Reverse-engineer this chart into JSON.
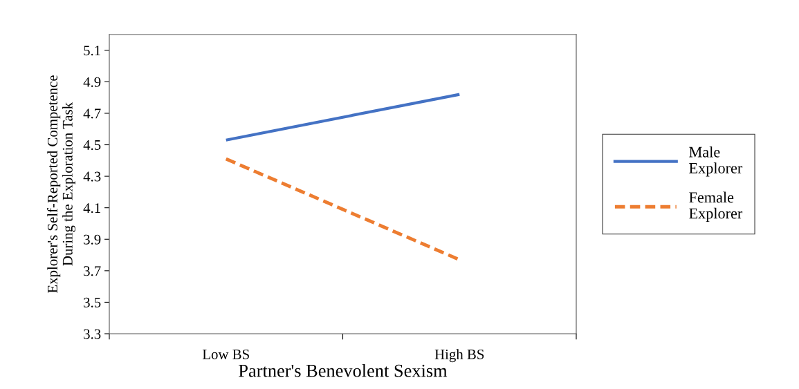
{
  "chart_data": {
    "type": "line",
    "xlabel": "Partner's Benevolent Sexism",
    "ylabel": "Explorer's Self-Reported Competence\nDuring the Exploration Task",
    "categories": [
      "Low BS",
      "High BS"
    ],
    "series": [
      {
        "name": "Male\nExplorer",
        "color": "#4472c4",
        "values": [
          4.53,
          4.82
        ],
        "line_style": "solid"
      },
      {
        "name": "Female\nExplorer",
        "color": "#ed7d31",
        "values": [
          4.41,
          3.77
        ],
        "line_style": "dashed"
      }
    ],
    "ylim": [
      3.3,
      5.2
    ],
    "yticks": [
      {
        "value": 3.3,
        "label": "3.3"
      },
      {
        "value": 3.5,
        "label": "3.5"
      },
      {
        "value": 3.7,
        "label": "3.7"
      },
      {
        "value": 3.9,
        "label": "3.9"
      },
      {
        "value": 4.1,
        "label": "4.1"
      },
      {
        "value": 4.3,
        "label": "4.3"
      },
      {
        "value": 4.5,
        "label": "4.5"
      },
      {
        "value": 4.7,
        "label": "4.7"
      },
      {
        "value": 4.9,
        "label": "4.9"
      },
      {
        "value": 5.1,
        "label": "5.1"
      }
    ],
    "grid": false,
    "legend": "right",
    "marker": "none"
  }
}
